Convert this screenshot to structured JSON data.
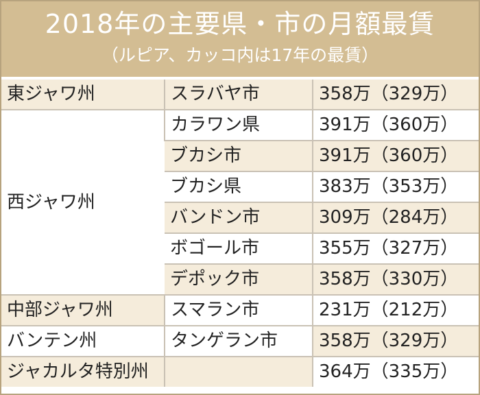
{
  "title": "2018年の主要県・市の月額最賃",
  "subtitle": "（ルピア、カッコ内は17年の最賃）",
  "rows": [
    {
      "province": "東ジャワ州",
      "city": "スラバヤ市",
      "wage": "358万（329万）"
    },
    {
      "province": "西ジャワ州",
      "city": "カラワン県",
      "wage": "391万（360万）"
    },
    {
      "province": "",
      "city": "ブカシ市",
      "wage": "391万（360万）"
    },
    {
      "province": "",
      "city": "ブカシ県",
      "wage": "383万（353万）"
    },
    {
      "province": "",
      "city": "バンドン市",
      "wage": "309万（284万）"
    },
    {
      "province": "",
      "city": "ボゴール市",
      "wage": "355万（327万）"
    },
    {
      "province": "",
      "city": "デポック市",
      "wage": "358万（330万）"
    },
    {
      "province": "中部ジャワ州",
      "city": "スマラン市",
      "wage": "231万（212万）"
    },
    {
      "province": "バンテン州",
      "city": "タンゲラン市",
      "wage": "358万（329万）"
    },
    {
      "province": "ジャカルタ特別州",
      "city": "",
      "wage": "364万（335万）"
    }
  ]
}
